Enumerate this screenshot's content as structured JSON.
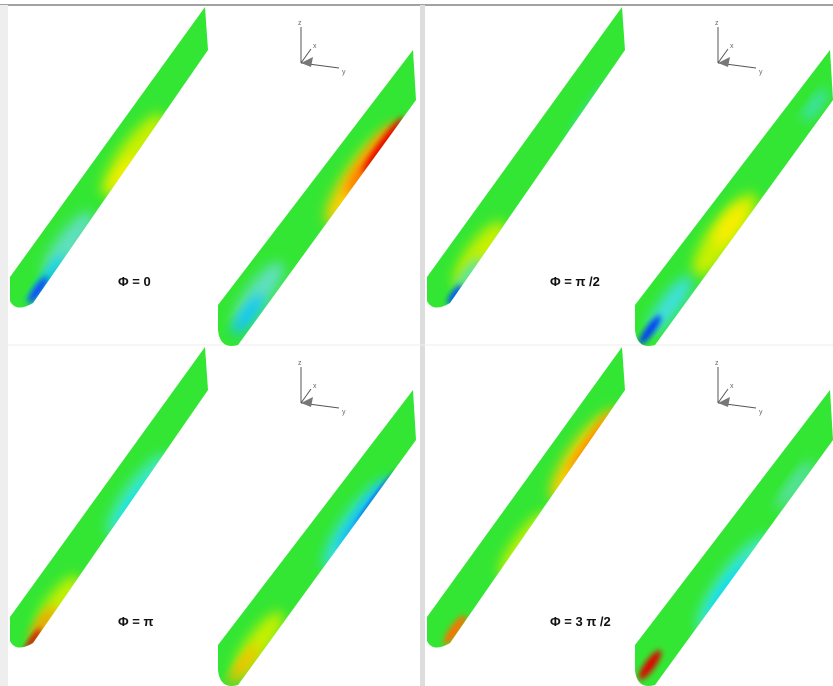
{
  "panels": [
    {
      "label": "Φ = 0",
      "axes": {
        "vertical": "z",
        "depth": "x",
        "horizontal": "y"
      }
    },
    {
      "label": "Φ = π /2",
      "axes": {
        "vertical": "z",
        "depth": "x",
        "horizontal": "y"
      }
    },
    {
      "label": "Φ = π",
      "axes": {
        "vertical": "z",
        "depth": "x",
        "horizontal": "y"
      }
    },
    {
      "label": "Φ = 3 π /2",
      "axes": {
        "vertical": "z",
        "depth": "x",
        "horizontal": "y"
      }
    }
  ]
}
